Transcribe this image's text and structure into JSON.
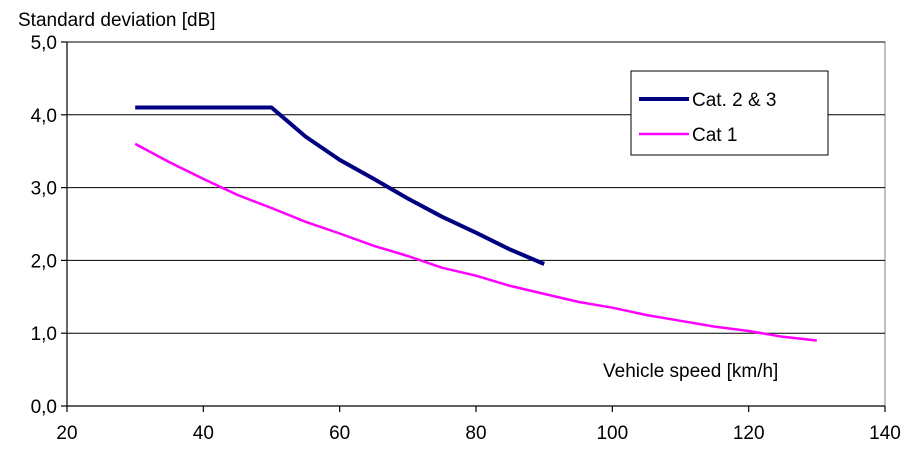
{
  "chart_data": {
    "type": "line",
    "ylabel": "Standard deviation [dB]",
    "xlabel": "Vehicle speed  [km/h]",
    "xlim": [
      20,
      140
    ],
    "ylim": [
      0,
      5
    ],
    "x_ticks": [
      20,
      40,
      60,
      80,
      100,
      120,
      140
    ],
    "y_ticks": [
      "0,0",
      "1,0",
      "2,0",
      "3,0",
      "4,0",
      "5,0"
    ],
    "grid": "horizontal",
    "legend_position": "top-right",
    "series": [
      {
        "name": "Cat. 2 & 3",
        "color": "#000080",
        "x": [
          30,
          35,
          40,
          45,
          50,
          55,
          60,
          65,
          70,
          75,
          80,
          85,
          90
        ],
        "y": [
          4.1,
          4.1,
          4.1,
          4.1,
          4.1,
          3.7,
          3.38,
          3.12,
          2.85,
          2.6,
          2.38,
          2.15,
          1.95
        ]
      },
      {
        "name": "Cat 1",
        "color": "#ff00ff",
        "x": [
          30,
          35,
          40,
          45,
          50,
          55,
          60,
          65,
          70,
          75,
          80,
          85,
          90,
          95,
          100,
          105,
          110,
          115,
          120,
          125,
          130
        ],
        "y": [
          3.6,
          3.35,
          3.12,
          2.9,
          2.72,
          2.53,
          2.37,
          2.2,
          2.06,
          1.9,
          1.79,
          1.65,
          1.54,
          1.43,
          1.35,
          1.25,
          1.17,
          1.09,
          1.03,
          0.95,
          0.9
        ]
      }
    ]
  }
}
